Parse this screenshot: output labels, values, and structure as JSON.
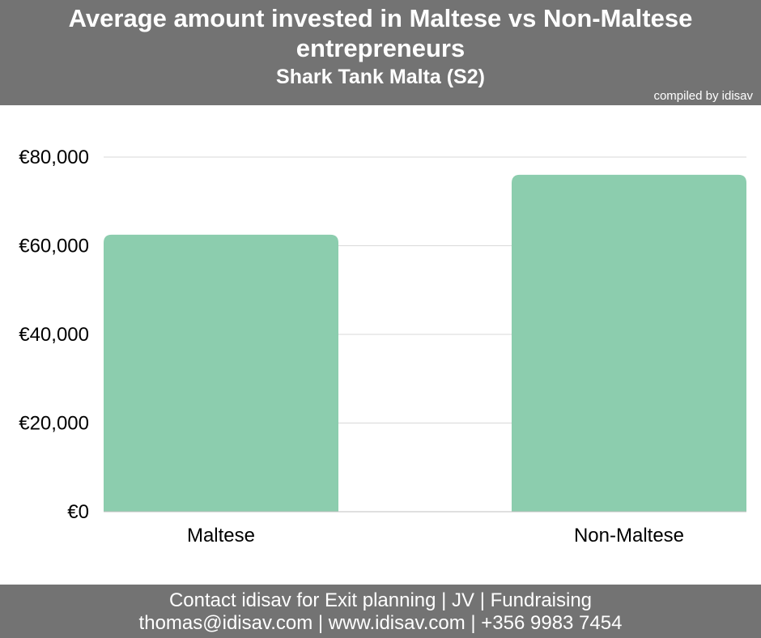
{
  "header": {
    "title": "Average amount invested in Maltese vs Non-Maltese entrepreneurs",
    "subtitle": "Shark Tank Malta (S2)",
    "credit": "compiled by idisav"
  },
  "footer": {
    "line1": "Contact idisav for Exit planning | JV | Fundraising",
    "line2": "thomas@idisav.com | www.idisav.com | +356 9983 7454"
  },
  "colors": {
    "bar": "#8ccdae",
    "band": "#737373",
    "grid": "#d9d9d9",
    "axis": "#bfbfbf"
  },
  "chart_data": {
    "type": "bar",
    "title": "",
    "xlabel": "",
    "ylabel": "",
    "categories": [
      "Maltese",
      "Non-Maltese"
    ],
    "values": [
      62500,
      76000
    ],
    "ylim": [
      0,
      80000
    ],
    "yticks": [
      0,
      20000,
      40000,
      60000,
      80000
    ],
    "ytick_labels": [
      "€0",
      "€20,000",
      "€40,000",
      "€60,000",
      "€80,000"
    ],
    "grid": true,
    "legend": "none"
  }
}
